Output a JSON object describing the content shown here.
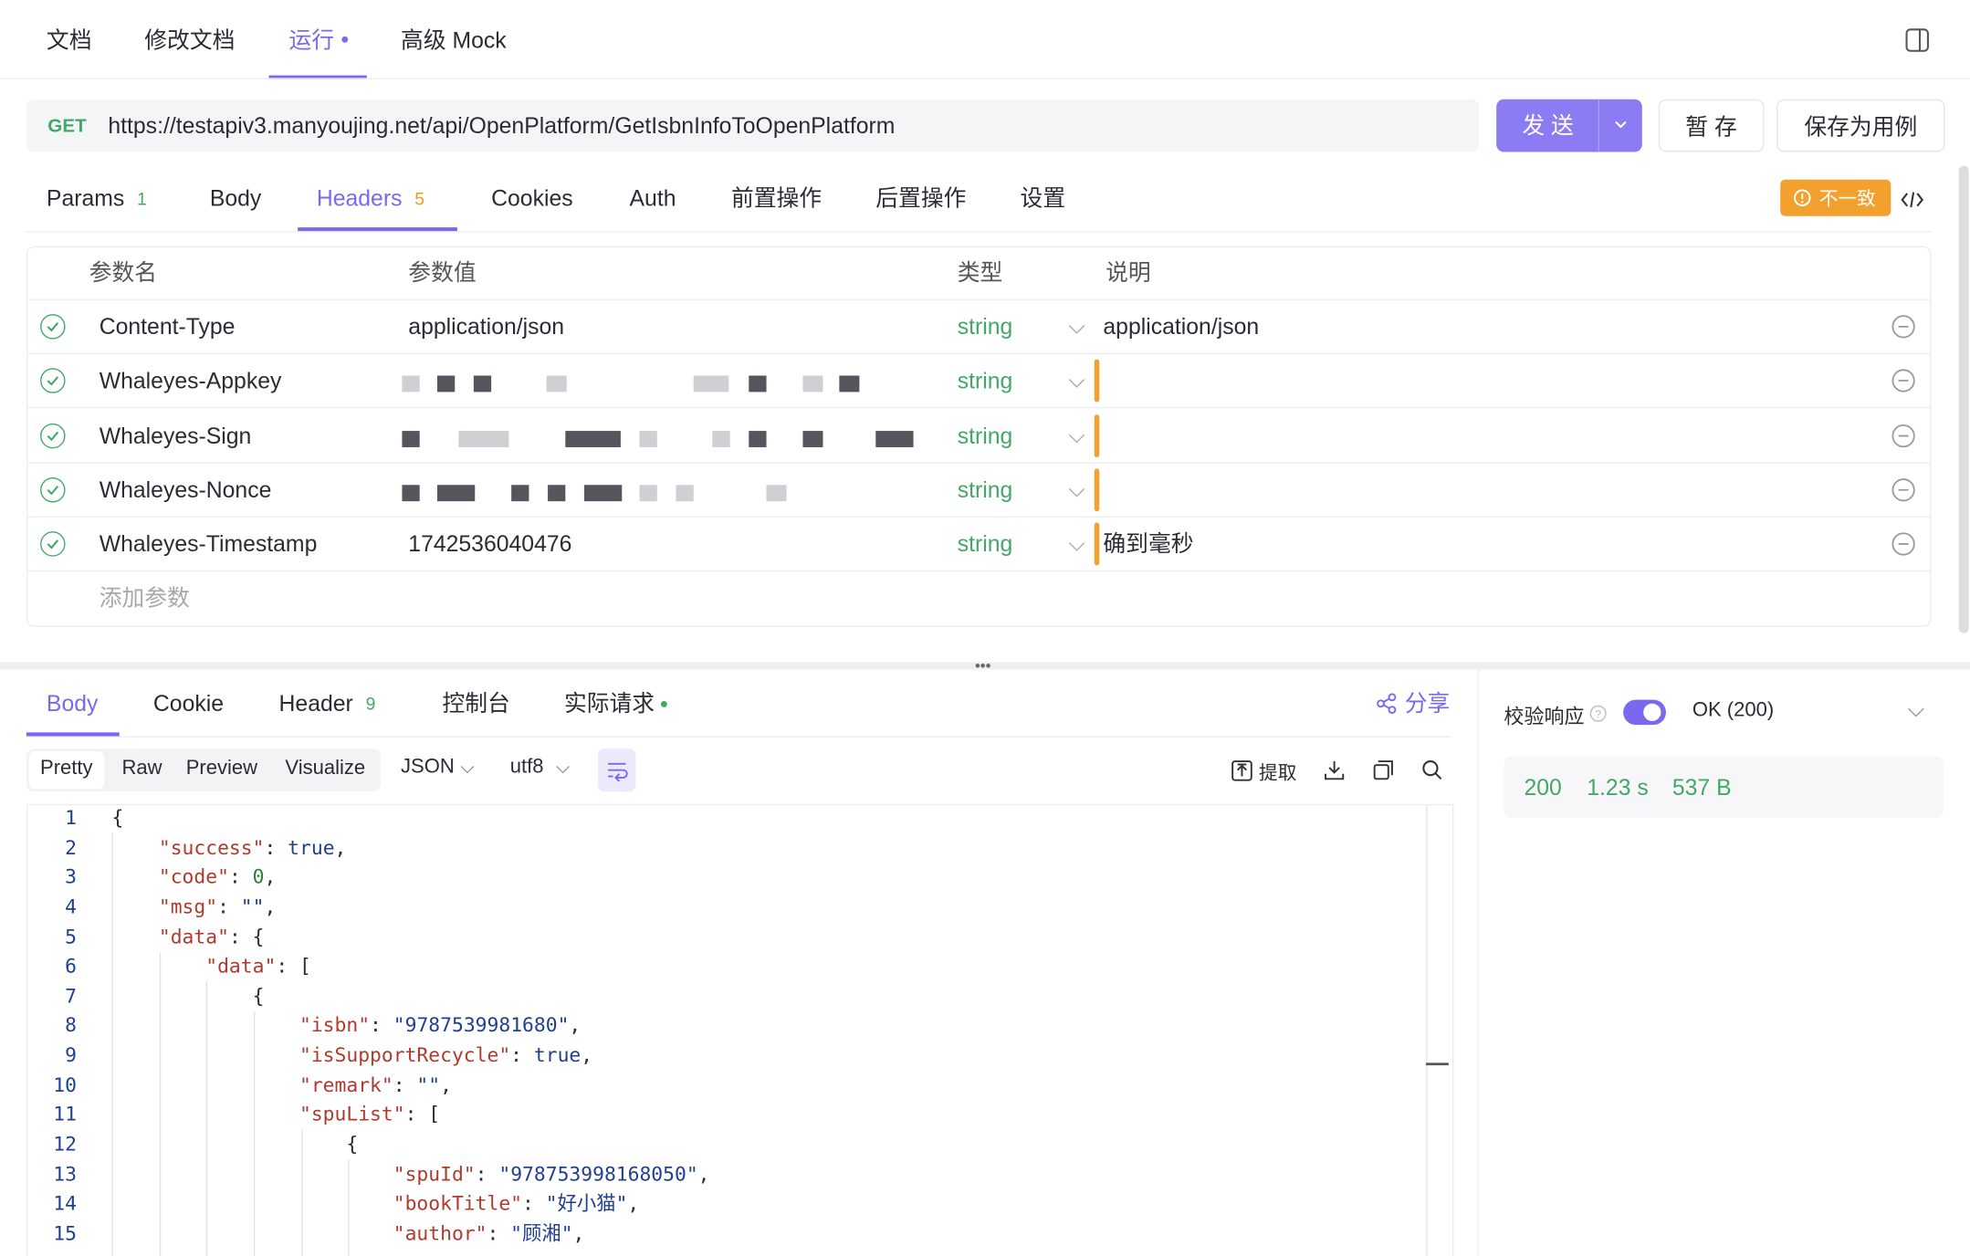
{
  "top_tabs": [
    "文档",
    "修改文档",
    "运行",
    "高级 Mock"
  ],
  "request": {
    "method": "GET",
    "url": "https://testapiv3.manyoujing.net/api/OpenPlatform/GetIsbnInfoToOpenPlatform",
    "send": "发 送",
    "save_draft": "暂 存",
    "save_case": "保存为用例"
  },
  "param_tabs": [
    {
      "label": "Params",
      "count": "1"
    },
    {
      "label": "Body"
    },
    {
      "label": "Headers",
      "count": "5"
    },
    {
      "label": "Cookies"
    },
    {
      "label": "Auth"
    },
    {
      "label": "前置操作"
    },
    {
      "label": "后置操作"
    },
    {
      "label": "设置"
    }
  ],
  "mismatch": "不一致",
  "headers_table": {
    "columns": [
      "参数名",
      "参数值",
      "类型",
      "说明"
    ],
    "rows": [
      {
        "name": "Content-Type",
        "value": "application/json",
        "type": "string",
        "description": "application/json"
      },
      {
        "name": "Whaleyes-Appkey",
        "type": "string"
      },
      {
        "name": "Whaleyes-Sign",
        "type": "string"
      },
      {
        "name": "Whaleyes-Nonce",
        "type": "string"
      },
      {
        "name": "Whaleyes-Timestamp",
        "value": "1742536040476",
        "type": "string",
        "description": "确到毫秒"
      }
    ],
    "add_placeholder": "添加参数"
  },
  "response_tabs": [
    {
      "label": "Body"
    },
    {
      "label": "Cookie"
    },
    {
      "label": "Header",
      "count": "9"
    },
    {
      "label": "控制台"
    },
    {
      "label": "实际请求"
    }
  ],
  "share": "分享",
  "view_modes": [
    "Pretty",
    "Raw",
    "Preview",
    "Visualize"
  ],
  "format": "JSON",
  "encoding": "utf8",
  "extract": "提取",
  "code_lines": [
    "{",
    "    \"success\": true,",
    "    \"code\": 0,",
    "    \"msg\": \"\",",
    "    \"data\": {",
    "        \"data\": [",
    "            {",
    "                \"isbn\": \"9787539981680\",",
    "                \"isSupportRecycle\": true,",
    "                \"remark\": \"\",",
    "                \"spuList\": [",
    "                    {",
    "                        \"spuId\": \"978753998168050\",",
    "                        \"bookTitle\": \"好小猫\",",
    "                        \"author\": \"顾湘\","
  ],
  "line_numbers": [
    1,
    2,
    3,
    4,
    5,
    6,
    7,
    8,
    9,
    10,
    11,
    12,
    13,
    14,
    15
  ],
  "validation": {
    "label": "校验响应",
    "status": "OK (200)",
    "code": "200",
    "time": "1.23 s",
    "size": "537 B"
  }
}
